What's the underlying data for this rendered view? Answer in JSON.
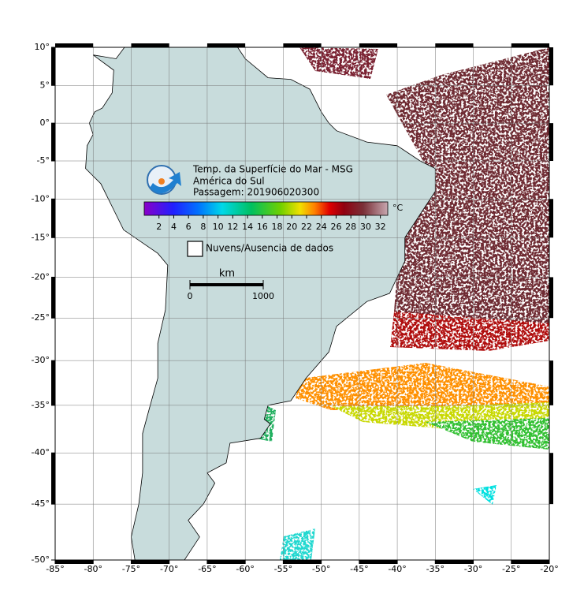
{
  "header": {
    "title": "Temp. da Superfície do Mar - MSG",
    "region": "América do Sul",
    "pass": "Passagem: 201906020300"
  },
  "colorbar": {
    "unit": "°C",
    "range": [
      0,
      33
    ],
    "ticks": [
      2,
      4,
      6,
      8,
      10,
      12,
      14,
      16,
      18,
      20,
      22,
      24,
      26,
      28,
      30,
      32
    ]
  },
  "legend": {
    "label": "Nuvens/Ausencia de dados"
  },
  "scale_bar": {
    "unit": "km",
    "ticks": [
      0,
      1000
    ]
  },
  "axes": {
    "xlim": [
      -85,
      -20
    ],
    "ylim": [
      -50,
      10
    ],
    "xticks": [
      {
        "value": -85,
        "label": "-85°"
      },
      {
        "value": -80,
        "label": "-80°"
      },
      {
        "value": -75,
        "label": "-75°"
      },
      {
        "value": -70,
        "label": "-70°"
      },
      {
        "value": -65,
        "label": "-65°"
      },
      {
        "value": -60,
        "label": "-60°"
      },
      {
        "value": -55,
        "label": "-55°"
      },
      {
        "value": -50,
        "label": "-50°"
      },
      {
        "value": -45,
        "label": "-45°"
      },
      {
        "value": -40,
        "label": "-40°"
      },
      {
        "value": -35,
        "label": "-35°"
      },
      {
        "value": -30,
        "label": "-30°"
      },
      {
        "value": -25,
        "label": "-25°"
      },
      {
        "value": -20,
        "label": "-20°"
      }
    ],
    "yticks": [
      {
        "value": 10,
        "label": "10°"
      },
      {
        "value": 5,
        "label": "5°"
      },
      {
        "value": 0,
        "label": "0°"
      },
      {
        "value": -5,
        "label": "-5°"
      },
      {
        "value": -10,
        "label": "-10°"
      },
      {
        "value": -15,
        "label": "-15°"
      },
      {
        "value": -20,
        "label": "-20°"
      },
      {
        "value": -25,
        "label": "-25°"
      },
      {
        "value": -30,
        "label": "-30°"
      },
      {
        "value": -35,
        "label": "-35°"
      },
      {
        "value": -40,
        "label": "-40°"
      },
      {
        "value": -45,
        "label": "-45°"
      },
      {
        "value": -50,
        "label": "-50°"
      }
    ]
  }
}
